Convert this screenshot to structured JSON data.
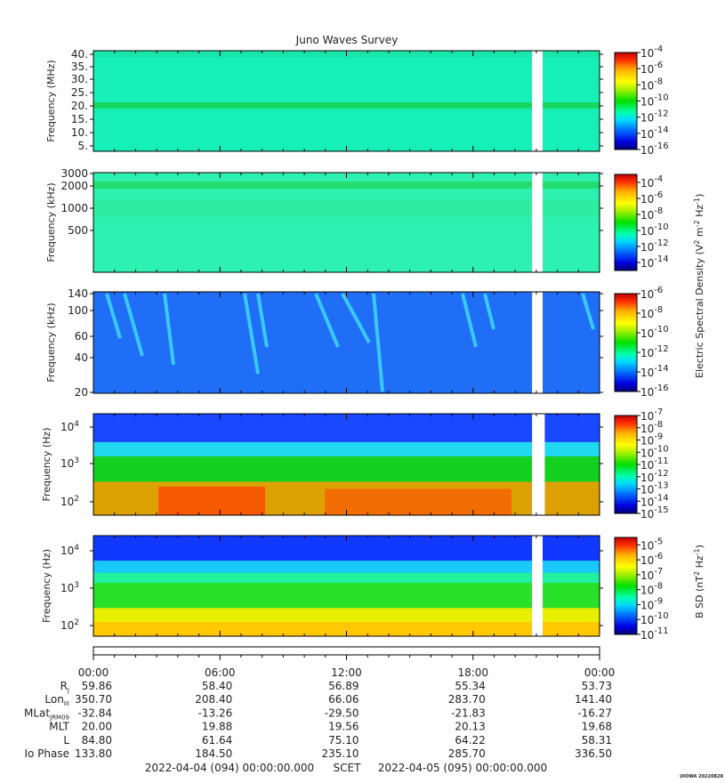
{
  "title": "Juno Waves Survey",
  "credit": "UIOWA 20220828",
  "colors": {
    "gap": "#ffffff",
    "axis": "#000000"
  },
  "time_axis": {
    "ticks": [
      "00:00",
      "06:00",
      "12:00",
      "18:00",
      "00:00"
    ],
    "scet_label": "SCET",
    "start": "2022-04-04 (094) 00:00:00.000",
    "end": "2022-04-05 (095) 00:00:00.000"
  },
  "ephemeris": [
    {
      "label": "R",
      "sub": "J",
      "values": [
        "59.86",
        "58.40",
        "56.89",
        "55.34",
        "53.73"
      ]
    },
    {
      "label": "Lon",
      "sub": "III",
      "values": [
        "350.70",
        "208.40",
        "66.06",
        "283.70",
        "141.40"
      ]
    },
    {
      "label": "MLat",
      "sub": "JRM09",
      "values": [
        "-32.84",
        "-13.26",
        "-29.50",
        "-21.83",
        "-16.27"
      ]
    },
    {
      "label": "MLT",
      "sub": "",
      "values": [
        "20.00",
        "19.88",
        "19.56",
        "20.13",
        "19.68"
      ]
    },
    {
      "label": "L",
      "sub": "",
      "values": [
        "84.80",
        "61.64",
        "75.10",
        "64.22",
        "58.31"
      ]
    },
    {
      "label": "Io Phase",
      "sub": "",
      "values": [
        "133.80",
        "184.50",
        "235.10",
        "285.70",
        "336.50"
      ]
    }
  ],
  "colorbar_titles": {
    "electric": {
      "main": "Electric Spectral Density (V",
      "sup1": "2",
      "mid": " m",
      "sup2": "-2",
      "mid2": " Hz",
      "sup3": "-1",
      "end": ")"
    },
    "magnetic": {
      "main": "B SD (nT",
      "sup1": "2",
      "mid": " Hz",
      "sup2": "-1",
      "end": ")"
    }
  },
  "chart_data": [
    {
      "type": "heatmap",
      "name_key": "hfr_high",
      "ylabel": "Frequency (MHz)",
      "yticks": [
        "40.",
        "35.",
        "30.",
        "25.",
        "20.",
        "15.",
        "10.",
        "5."
      ],
      "ylim": [
        3,
        41
      ],
      "yscale": "linear",
      "time_range_hours": [
        0,
        24
      ],
      "data_gap_hours": [
        20.8,
        21.3
      ],
      "colorbar": {
        "exp_min": -16,
        "exp_max": -4,
        "labels": [
          "10",
          "10",
          "10",
          "10",
          "10",
          "10",
          "10"
        ],
        "exps": [
          "-4",
          "-6",
          "-8",
          "-10",
          "-12",
          "-14",
          "-16"
        ]
      }
    },
    {
      "type": "heatmap",
      "name_key": "hfr_low",
      "ylabel": "Frequency (kHz)",
      "yticks": [
        "3000",
        "2000",
        "1000",
        "500"
      ],
      "ylim": [
        150,
        3000
      ],
      "yscale": "log",
      "time_range_hours": [
        0,
        24
      ],
      "data_gap_hours": [
        20.8,
        21.3
      ],
      "colorbar": {
        "exp_min": -15,
        "exp_max": -3,
        "labels": [
          "10",
          "10",
          "10",
          "10",
          "10",
          "10"
        ],
        "exps": [
          "-4",
          "-6",
          "-8",
          "-10",
          "-12",
          "-14"
        ]
      }
    },
    {
      "type": "heatmap",
      "name_key": "lfr_high",
      "ylabel": "Frequency (kHz)",
      "yticks": [
        "140",
        "100",
        "60",
        "40",
        "20"
      ],
      "ylim": [
        20,
        140
      ],
      "yscale": "log",
      "time_range_hours": [
        0,
        24
      ],
      "data_gap_hours": [
        20.8,
        21.3
      ],
      "colorbar": {
        "exp_min": -16,
        "exp_max": -6,
        "labels": [
          "10",
          "10",
          "10",
          "10",
          "10",
          "10"
        ],
        "exps": [
          "-6",
          "-8",
          "-10",
          "-12",
          "-14",
          "-16"
        ]
      }
    },
    {
      "type": "heatmap",
      "name_key": "lfr_low",
      "ylabel": "Frequency (Hz)",
      "yticks": [
        "10",
        "10",
        "10"
      ],
      "ytick_exps": [
        "4",
        "3",
        "2"
      ],
      "ylim": [
        50,
        20000
      ],
      "yscale": "log",
      "time_range_hours": [
        0,
        24
      ],
      "data_gap_hours": [
        20.8,
        21.4
      ],
      "colorbar": {
        "exp_min": -15,
        "exp_max": -7,
        "labels": [
          "10",
          "10",
          "10",
          "10",
          "10",
          "10",
          "10",
          "10",
          "10"
        ],
        "exps": [
          "-7",
          "-8",
          "-9",
          "-10",
          "-11",
          "-12",
          "-13",
          "-14",
          "-15"
        ]
      }
    },
    {
      "type": "heatmap",
      "name_key": "mag",
      "ylabel": "Frequency (Hz)",
      "yticks": [
        "10",
        "10",
        "10"
      ],
      "ytick_exps": [
        "4",
        "3",
        "2"
      ],
      "ylim": [
        50,
        20000
      ],
      "yscale": "log",
      "time_range_hours": [
        0,
        24
      ],
      "data_gap_hours": [
        20.8,
        21.3
      ],
      "colorbar": {
        "exp_min": -11,
        "exp_max": -4.5,
        "labels": [
          "10",
          "10",
          "10",
          "10",
          "10",
          "10",
          "10"
        ],
        "exps": [
          "-5",
          "-6",
          "-7",
          "-8",
          "-9",
          "-10",
          "-11"
        ]
      }
    }
  ]
}
